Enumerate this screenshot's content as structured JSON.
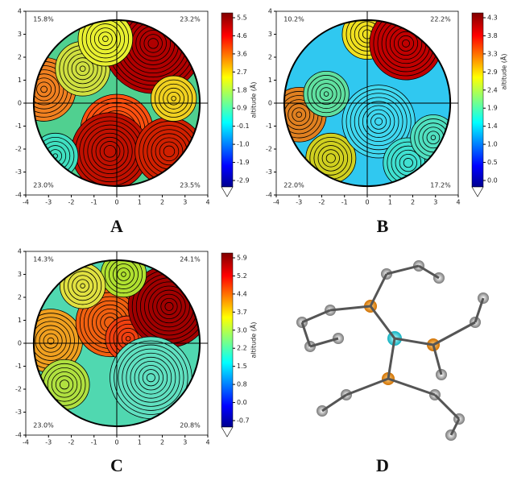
{
  "figure": {
    "panels": [
      {
        "label": "A",
        "x_ticks": [
          "-4",
          "-3",
          "-2",
          "-1",
          "0",
          "1",
          "2",
          "3",
          "4"
        ],
        "y_ticks": [
          "4",
          "3",
          "2",
          "1",
          "0",
          "-1",
          "-2",
          "-3",
          "-4"
        ],
        "quadrants": [
          "15.8%",
          "23.2%",
          "23.0%",
          "23.5%"
        ],
        "colorbar_ticks": [
          "5.5",
          "4.6",
          "3.6",
          "2.7",
          "1.8",
          "0.9",
          "-0.1",
          "-1.0",
          "-1.9",
          "-2.9"
        ],
        "colorbar_label": "altitude (Å)"
      },
      {
        "label": "B",
        "x_ticks": [
          "-4",
          "-3",
          "-2",
          "-1",
          "0",
          "1",
          "2",
          "3",
          "4"
        ],
        "y_ticks": [
          "4",
          "3",
          "2",
          "1",
          "0",
          "-1",
          "-2",
          "-3",
          "-4"
        ],
        "quadrants": [
          "10.2%",
          "22.2%",
          "22.0%",
          "17.2%"
        ],
        "colorbar_ticks": [
          "4.3",
          "3.8",
          "3.3",
          "2.9",
          "2.4",
          "1.9",
          "1.4",
          "1.0",
          "0.5",
          "0.0"
        ],
        "colorbar_label": "altitude (Å)"
      },
      {
        "label": "C",
        "x_ticks": [
          "-4",
          "-3",
          "-2",
          "-1",
          "0",
          "1",
          "2",
          "3",
          "4"
        ],
        "y_ticks": [
          "4",
          "3",
          "2",
          "1",
          "0",
          "-1",
          "-2",
          "-3",
          "-4"
        ],
        "quadrants": [
          "14.3%",
          "24.1%",
          "23.0%",
          "20.8%"
        ],
        "colorbar_ticks": [
          "5.9",
          "5.2",
          "4.4",
          "3.7",
          "3.0",
          "2.2",
          "1.5",
          "0.8",
          "0.0",
          "-0.7"
        ],
        "colorbar_label": "altitude (Å)"
      },
      {
        "label": "D"
      }
    ]
  }
}
